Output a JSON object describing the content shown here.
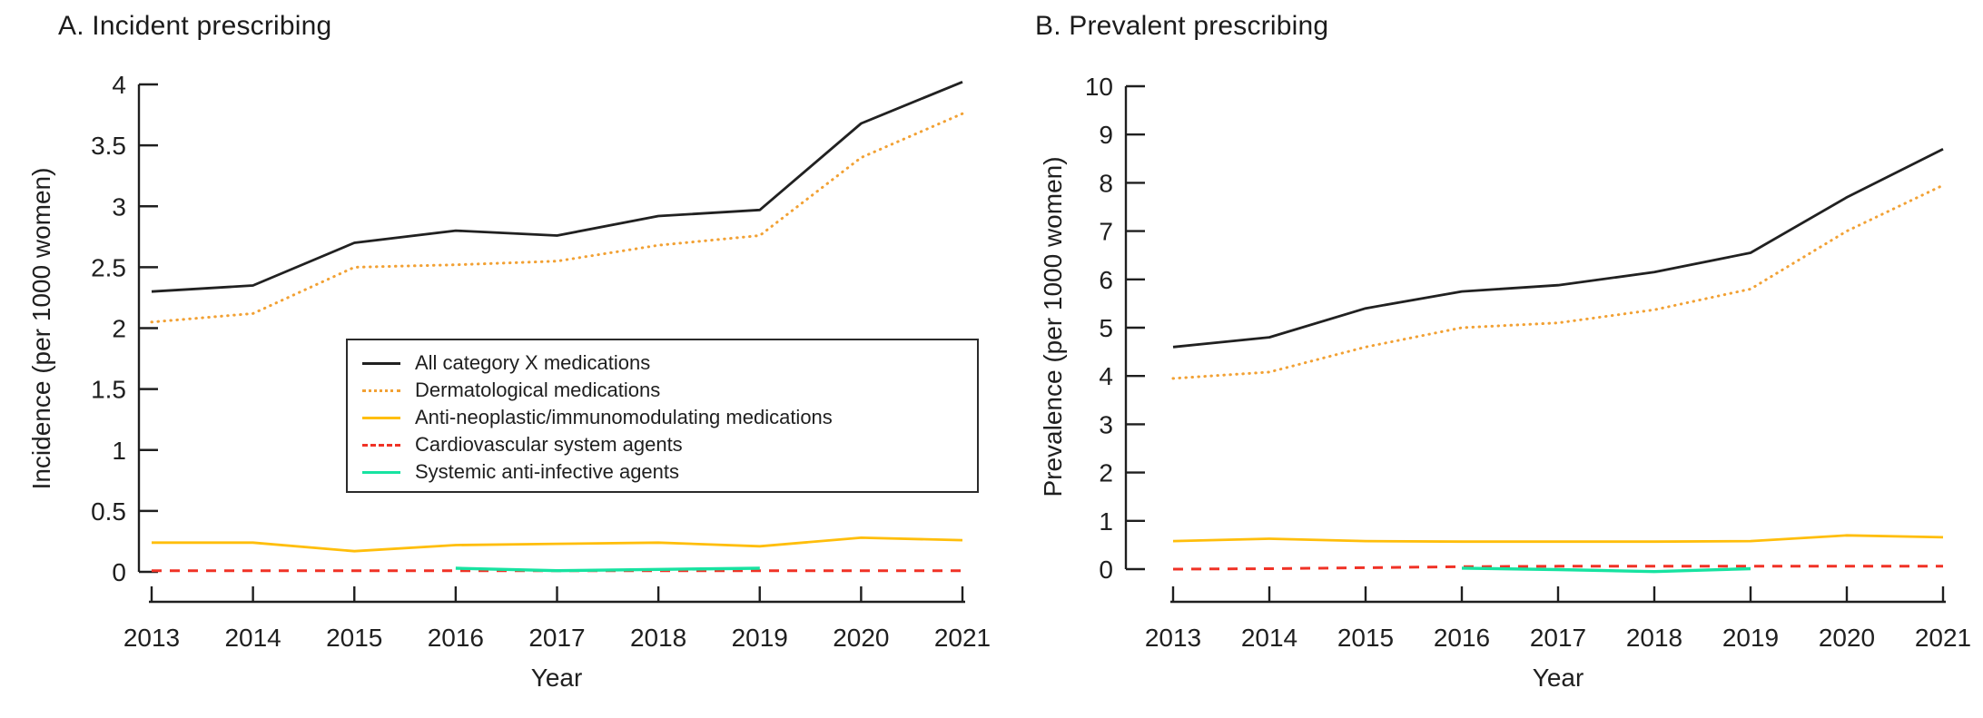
{
  "figure": {
    "background": "#ffffff",
    "text_color": "#1f1f1f"
  },
  "legend": {
    "position": "inside panel A, lower middle",
    "items": [
      {
        "label": "All category X medications",
        "color": "#212121",
        "style": "solid"
      },
      {
        "label": "Dermatological medications",
        "color": "#F2A134",
        "style": "dotted"
      },
      {
        "label": "Anti-neoplastic/immunomodulating medications",
        "color": "#FFBE0B",
        "style": "solid"
      },
      {
        "label": "Cardiovascular system agents",
        "color": "#F03226",
        "style": "dashed"
      },
      {
        "label": "Systemic anti-infective agents",
        "color": "#17E3A1",
        "style": "solid"
      }
    ]
  },
  "chart_data": [
    {
      "type": "line",
      "panel": "A",
      "title": "A. Incident prescribing",
      "xlabel": "Year",
      "ylabel": "Incidence (per 1000 women)",
      "grid": false,
      "x": [
        2013,
        2014,
        2015,
        2016,
        2017,
        2018,
        2019,
        2020,
        2021
      ],
      "xtick_labels": [
        "2013",
        "2014",
        "2015",
        "2016",
        "2017",
        "2018",
        "2019",
        "2020",
        "2021"
      ],
      "ylim": [
        0,
        4
      ],
      "yticks": [
        0,
        0.5,
        1,
        1.5,
        2,
        2.5,
        3,
        3.5,
        4
      ],
      "ytick_labels": [
        "0",
        "0.5",
        "1",
        "1.5",
        "2",
        "2.5",
        "3",
        "3.5",
        "4"
      ],
      "series": [
        {
          "name": "All category X medications",
          "color": "#212121",
          "style": "solid",
          "values": [
            2.3,
            2.35,
            2.7,
            2.8,
            2.76,
            2.92,
            2.97,
            3.68,
            4.02
          ]
        },
        {
          "name": "Dermatological medications",
          "color": "#F2A134",
          "style": "dotted",
          "values": [
            2.05,
            2.12,
            2.5,
            2.52,
            2.55,
            2.68,
            2.76,
            3.4,
            3.76
          ]
        },
        {
          "name": "Anti-neoplastic/immunomodulating medications",
          "color": "#FFBE0B",
          "style": "solid",
          "values": [
            0.24,
            0.24,
            0.17,
            0.22,
            0.23,
            0.24,
            0.21,
            0.28,
            0.26
          ]
        },
        {
          "name": "Cardiovascular system agents",
          "color": "#F03226",
          "style": "dashed",
          "values": [
            0.01,
            0.01,
            0.01,
            0.01,
            0.01,
            0.01,
            0.01,
            0.01,
            0.01
          ]
        },
        {
          "name": "Systemic anti-infective agents",
          "color": "#17E3A1",
          "style": "solid",
          "x": [
            2016,
            2017,
            2018,
            2019
          ],
          "values": [
            0.03,
            0.01,
            0.02,
            0.03
          ]
        }
      ]
    },
    {
      "type": "line",
      "panel": "B",
      "title": "B. Prevalent prescribing",
      "xlabel": "Year",
      "ylabel": "Prevalence (per 1000 women)",
      "grid": false,
      "x": [
        2013,
        2014,
        2015,
        2016,
        2017,
        2018,
        2019,
        2020,
        2021
      ],
      "xtick_labels": [
        "2013",
        "2014",
        "2015",
        "2016",
        "2017",
        "2018",
        "2019",
        "2020",
        "2021"
      ],
      "ylim": [
        0,
        10
      ],
      "yticks": [
        0,
        1,
        2,
        3,
        4,
        5,
        6,
        7,
        8,
        9,
        10
      ],
      "ytick_labels": [
        "0",
        "1",
        "2",
        "3",
        "4",
        "5",
        "6",
        "7",
        "8",
        "9",
        "10"
      ],
      "series": [
        {
          "name": "All category X medications",
          "color": "#212121",
          "style": "solid",
          "values": [
            4.6,
            4.8,
            5.4,
            5.75,
            5.88,
            6.15,
            6.55,
            7.7,
            8.7
          ]
        },
        {
          "name": "Dermatological medications",
          "color": "#F2A134",
          "style": "dotted",
          "values": [
            3.95,
            4.08,
            4.6,
            5.0,
            5.1,
            5.37,
            5.8,
            7.0,
            7.95
          ]
        },
        {
          "name": "Anti-neoplastic/immunomodulating medications",
          "color": "#FFBE0B",
          "style": "solid",
          "values": [
            0.58,
            0.63,
            0.58,
            0.57,
            0.57,
            0.57,
            0.58,
            0.7,
            0.66
          ]
        },
        {
          "name": "Cardiovascular system agents",
          "color": "#F03226",
          "style": "dashed",
          "values": [
            0.0,
            0.01,
            0.03,
            0.05,
            0.06,
            0.06,
            0.06,
            0.06,
            0.06
          ]
        },
        {
          "name": "Systemic anti-infective agents",
          "color": "#17E3A1",
          "style": "solid",
          "x": [
            2016,
            2017,
            2018,
            2019
          ],
          "values": [
            0.02,
            -0.01,
            -0.05,
            0.01
          ]
        }
      ]
    }
  ]
}
